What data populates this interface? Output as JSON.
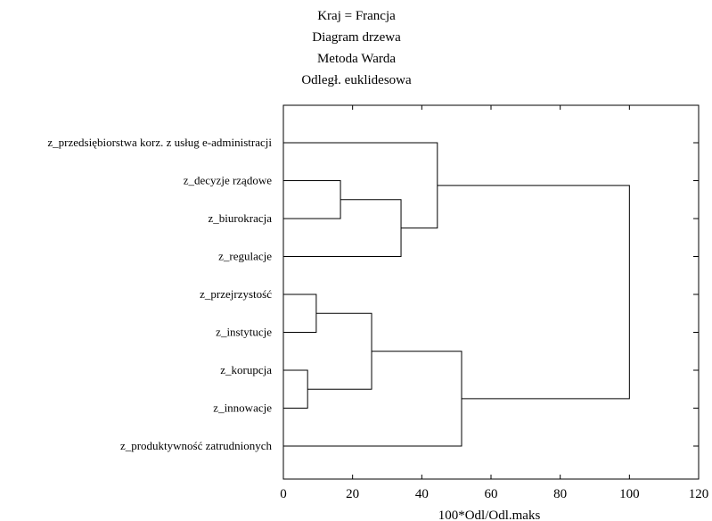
{
  "title_lines": [
    "Kraj = Francja",
    "Diagram drzewa",
    "Metoda Warda",
    "Odległ. euklidesowa"
  ],
  "chart_data": {
    "type": "dendrogram",
    "orientation": "horizontal",
    "xlabel": "100*Odl/Odl.maks",
    "xlim": [
      0,
      120
    ],
    "x_ticks": [
      0,
      20,
      40,
      60,
      80,
      100,
      120
    ],
    "leaves": [
      "z_przedsiębiorstwa korz. z usług e-administracji",
      "z_decyzje rządowe",
      "z_biurokracja",
      "z_regulacje",
      "z_przejrzystość",
      "z_instytucje",
      "z_korupcja",
      "z_innowacje",
      "z_produktywność zatrudnionych"
    ],
    "merges": [
      {
        "a": "z_korupcja",
        "b": "z_innowacje",
        "height": 7
      },
      {
        "a": "z_przejrzystość",
        "b": "z_instytucje",
        "height": 9.5
      },
      {
        "a": "z_decyzje rządowe",
        "b": "z_biurokracja",
        "height": 16.5
      },
      {
        "a": "{z_przejrzystość, z_instytucje}",
        "b": "{z_korupcja, z_innowacje}",
        "height": 25.5
      },
      {
        "a": "{z_decyzje rządowe, z_biurokracja}",
        "b": "z_regulacje",
        "height": 34
      },
      {
        "a": "z_przedsiębiorstwa korz. z usług e-administracji",
        "b": "{z_decyzje rządowe, z_biurokracja, z_regulacje}",
        "height": 44.5
      },
      {
        "a": "{z_przejrzystość, z_instytucje, z_korupcja, z_innowacje}",
        "b": "z_produktywność zatrudnionych",
        "height": 51.5
      },
      {
        "a": "cluster A",
        "b": "cluster B",
        "height": 100
      }
    ],
    "grid": false
  }
}
